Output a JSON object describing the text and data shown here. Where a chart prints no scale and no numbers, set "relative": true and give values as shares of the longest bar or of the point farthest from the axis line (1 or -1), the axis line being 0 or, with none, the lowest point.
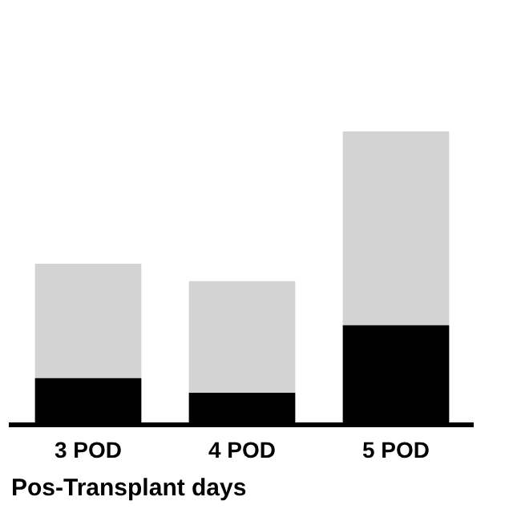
{
  "chart_data": {
    "type": "bar",
    "stacked": true,
    "relative": true,
    "xlabel": "Pos-Transplant days",
    "categories": [
      "3 POD",
      "4 POD",
      "5 POD"
    ],
    "series": [
      {
        "color": "#000000",
        "values": [
          0.16,
          0.11,
          0.34
        ]
      },
      {
        "color": "#d3d3d3",
        "values": [
          0.39,
          0.38,
          0.66
        ]
      }
    ],
    "legend": false,
    "grid": false
  }
}
